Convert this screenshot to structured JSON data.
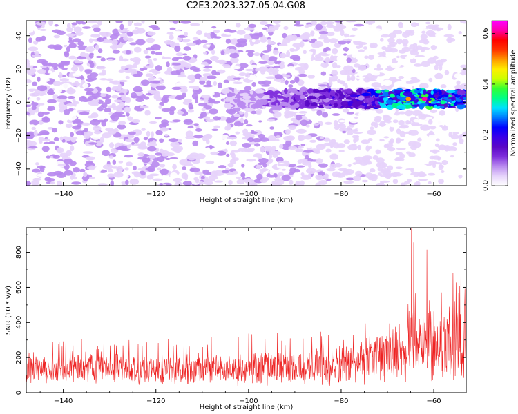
{
  "figure_title": "C2E3.2023.327.05.04.G08",
  "colors": {
    "snr_line": "#ee2222",
    "frame": "#000000",
    "colormap": [
      "#ffffff",
      "#e6d3fb",
      "#b98aef",
      "#7f2fdc",
      "#5a08c6",
      "#3a00e8",
      "#0000ff",
      "#0077ff",
      "#00e1ff",
      "#00ff88",
      "#33ff33",
      "#ccff00",
      "#ffee00",
      "#ff9900",
      "#ff3300",
      "#ff0000",
      "#ff00aa",
      "#ff00ff"
    ]
  },
  "chart_data": [
    {
      "type": "heatmap",
      "title": "",
      "xlabel": "Height of straight line (km)",
      "ylabel": "Frequency (Hz)",
      "xlim": [
        -148,
        -53
      ],
      "ylim": [
        -50,
        49
      ],
      "x_ticks": [
        -140,
        -120,
        -100,
        -80,
        -60
      ],
      "y_ticks": [
        -40,
        -20,
        0,
        20,
        40
      ],
      "colorbar": {
        "label": "Normalized spectral amplitude",
        "range": [
          0.0,
          0.65
        ],
        "ticks": [
          0.0,
          0.2,
          0.4,
          0.6
        ]
      },
      "signal_band": {
        "center_frequency_hz": 2,
        "half_width_hz": 5,
        "visible_from_km": -105
      },
      "peak_amplitude": 0.62,
      "peak_height_km": -62
    },
    {
      "type": "line",
      "title": "",
      "xlabel": "Height of straight line (km)",
      "ylabel": "SNR (10 * v/v)",
      "xlim": [
        -148,
        -53
      ],
      "ylim": [
        0,
        940
      ],
      "x_ticks": [
        -140,
        -120,
        -100,
        -80,
        -60
      ],
      "y_ticks": [
        0,
        200,
        400,
        600,
        800
      ],
      "x": [
        -148,
        -140,
        -130,
        -120,
        -110,
        -100,
        -90,
        -80,
        -75,
        -70,
        -65,
        -60,
        -55,
        -53
      ],
      "series": [
        {
          "name": "",
          "values": [
            130,
            135,
            140,
            130,
            135,
            140,
            145,
            155,
            175,
            230,
            280,
            270,
            265,
            250
          ]
        }
      ],
      "noise_amplitude": [
        70,
        75,
        80,
        80,
        80,
        90,
        95,
        105,
        120,
        160,
        200,
        200,
        190,
        180
      ],
      "notable_peaks": [
        {
          "x": -64.8,
          "y": 935
        },
        {
          "x": -61.5,
          "y": 815
        },
        {
          "x": -64.3,
          "y": 855
        }
      ]
    }
  ]
}
